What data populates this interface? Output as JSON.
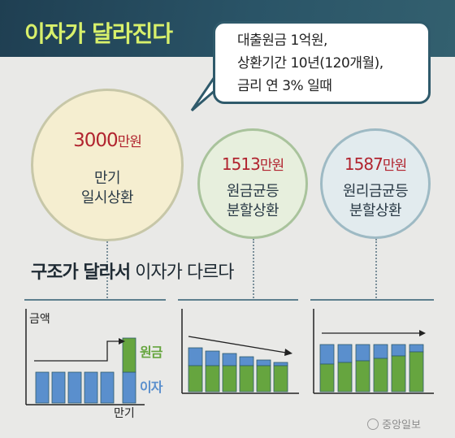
{
  "title": "이자가 달라진다",
  "bubble": {
    "lines": [
      "대출원금 1억원,",
      "상환기간 10년(120개월),",
      "금리 연 3% 일때"
    ]
  },
  "circles": [
    {
      "amount": "3000",
      "unit": "만원",
      "name_lines": [
        "만기",
        "일시상환"
      ]
    },
    {
      "amount": "1513",
      "unit": "만원",
      "name_lines": [
        "원금균등",
        "분할상환"
      ]
    },
    {
      "amount": "1587",
      "unit": "만원",
      "name_lines": [
        "원리금균등",
        "분할상환"
      ]
    }
  ],
  "section": {
    "title_bold": "구조가 달라서",
    "title_rest": " 이자가 다르다"
  },
  "charts": {
    "y_label": "금액",
    "x_label": "만기",
    "legend": {
      "principal": "원금",
      "interest": "이자"
    }
  },
  "colors": {
    "principal": "#66a53f",
    "interest": "#5a8fcd",
    "amount_text": "#b1242f",
    "title": "#d8f06b"
  },
  "credit": "중앙일보"
}
